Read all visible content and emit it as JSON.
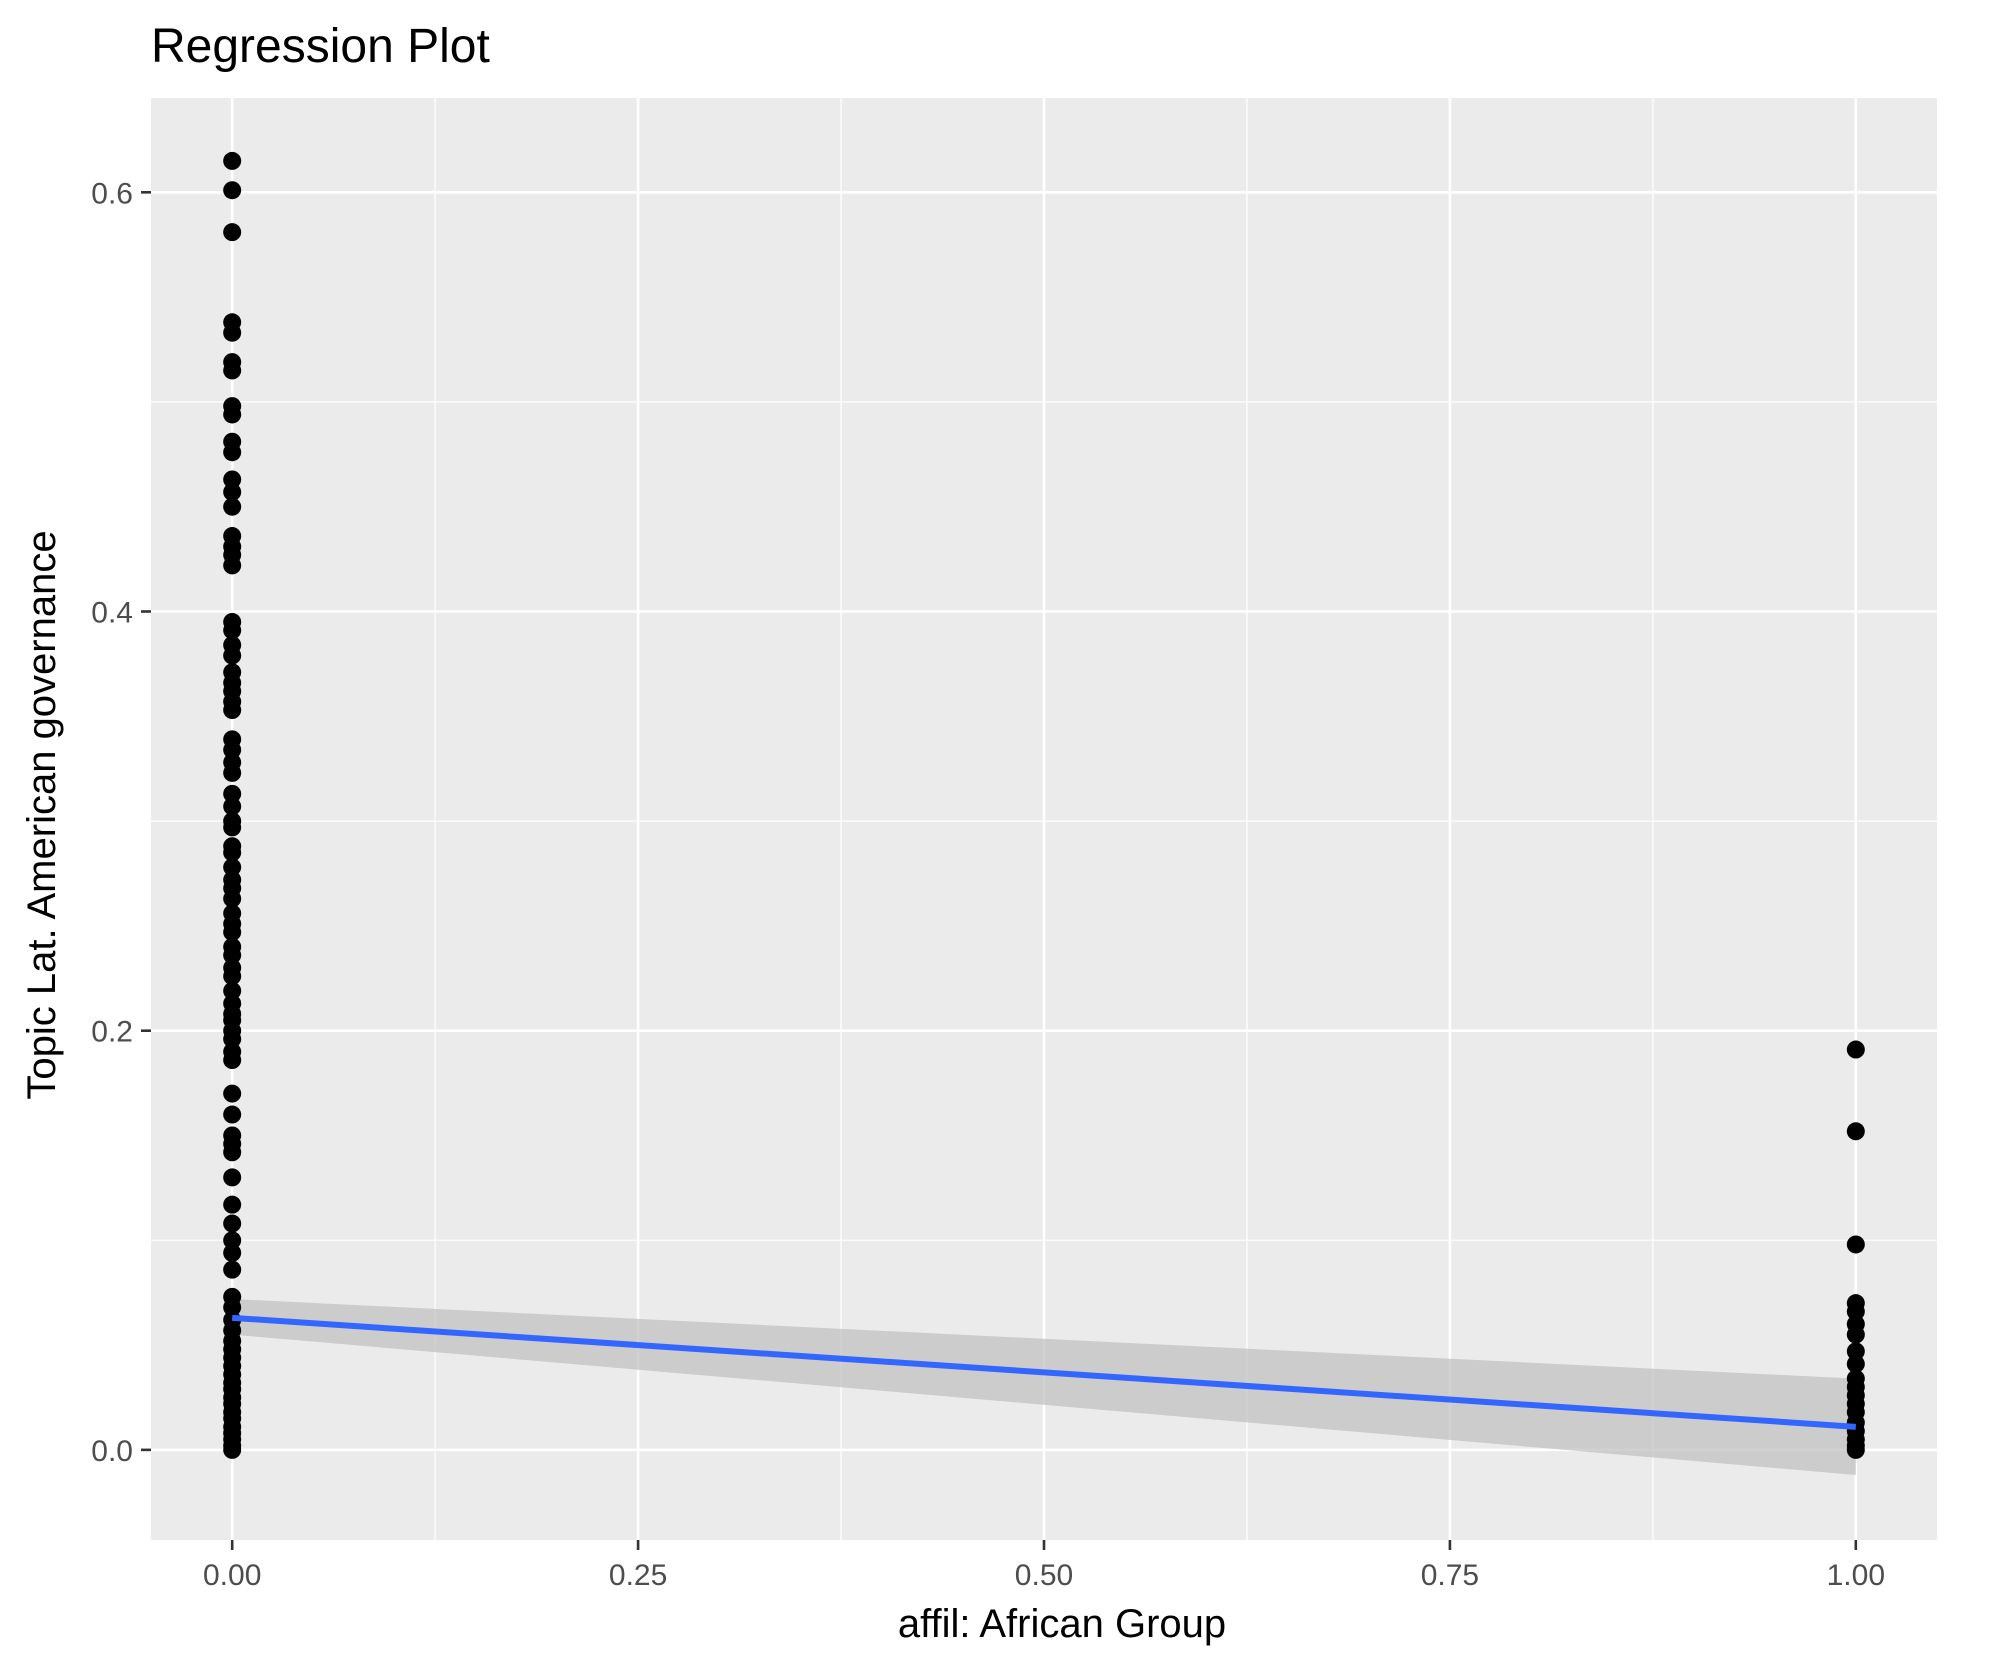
{
  "chart_data": {
    "type": "scatter",
    "title": "Regression Plot",
    "xlabel": "affil: African Group",
    "ylabel": "Topic Lat. American governance",
    "xlim": [
      -0.05,
      1.05
    ],
    "ylim": [
      -0.043,
      0.645
    ],
    "x_ticks": [
      0.0,
      0.25,
      0.5,
      0.75,
      1.0
    ],
    "x_tick_labels": [
      "0.00",
      "0.25",
      "0.50",
      "0.75",
      "1.00"
    ],
    "y_ticks": [
      0.0,
      0.2,
      0.4,
      0.6
    ],
    "y_tick_labels": [
      "0.0",
      "0.2",
      "0.4",
      "0.6"
    ],
    "grid": true,
    "legend": "none",
    "background": "#ebebeb",
    "gridline_color": "#ffffff",
    "point_color": "#000000",
    "line_color": "#3366ff",
    "ribbon_color": "#bfbfbf",
    "series": [
      {
        "x": 0,
        "values": [
          0.615,
          0.601,
          0.581,
          0.538,
          0.533,
          0.519,
          0.515,
          0.498,
          0.494,
          0.481,
          0.476,
          0.463,
          0.457,
          0.45,
          0.436,
          0.431,
          0.427,
          0.422,
          0.395,
          0.391,
          0.384,
          0.379,
          0.371,
          0.366,
          0.362,
          0.357,
          0.353,
          0.339,
          0.334,
          0.328,
          0.323,
          0.313,
          0.307,
          0.3,
          0.297,
          0.288,
          0.285,
          0.278,
          0.272,
          0.268,
          0.263,
          0.256,
          0.251,
          0.247,
          0.24,
          0.236,
          0.23,
          0.226,
          0.219,
          0.213,
          0.208,
          0.205,
          0.2,
          0.196,
          0.19,
          0.186,
          0.17,
          0.16,
          0.15,
          0.146,
          0.142,
          0.13,
          0.117,
          0.108,
          0.1,
          0.094,
          0.086,
          0.073,
          0.068,
          0.062,
          0.057,
          0.052,
          0.048,
          0.044,
          0.04,
          0.036,
          0.032,
          0.029,
          0.025,
          0.022,
          0.018,
          0.015,
          0.011,
          0.008,
          0.005,
          0.002,
          0.0
        ]
      },
      {
        "x": 1,
        "values": [
          0.191,
          0.152,
          0.098,
          0.07,
          0.066,
          0.06,
          0.055,
          0.047,
          0.041,
          0.034,
          0.03,
          0.026,
          0.022,
          0.018,
          0.013,
          0.009,
          0.005,
          0.002,
          0.0
        ]
      }
    ],
    "regression": {
      "x": [
        0,
        1
      ],
      "y": [
        0.063,
        0.011
      ],
      "ci_lower": [
        0.055,
        -0.012
      ],
      "ci_upper": [
        0.072,
        0.034
      ]
    }
  }
}
